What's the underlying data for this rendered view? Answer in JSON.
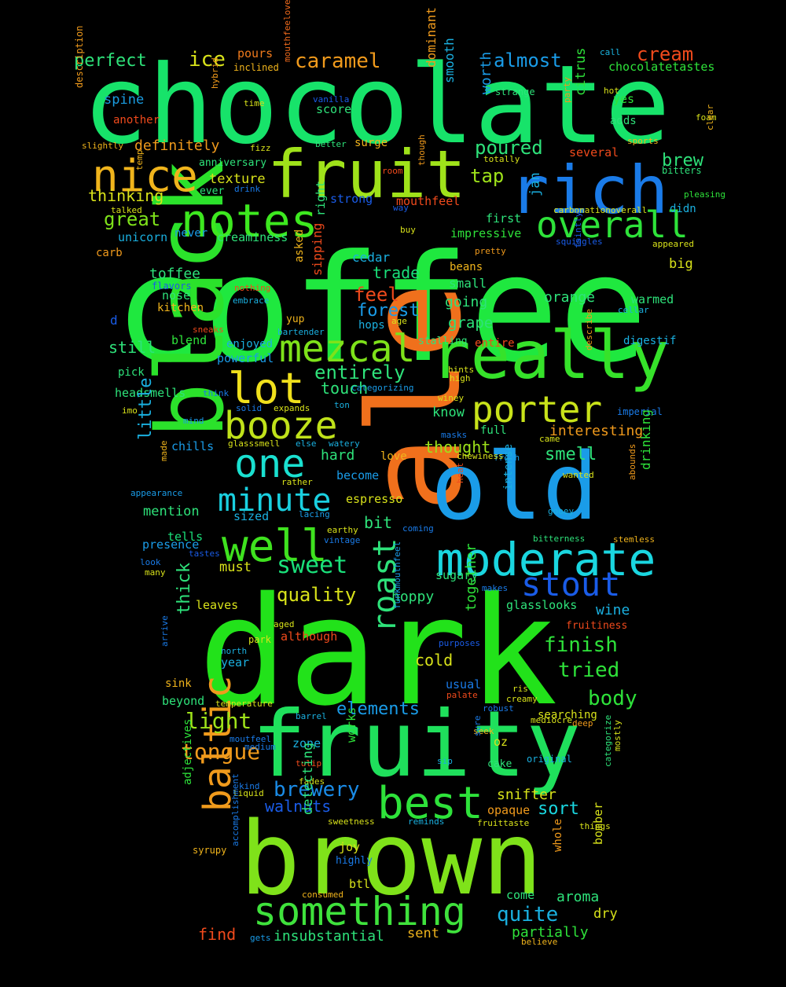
{
  "words": [
    {
      "t": "coffee",
      "c": "#1fe83f"
    },
    {
      "t": "dark",
      "c": "#22e21a"
    },
    {
      "t": "chocolate",
      "c": "#17e36a"
    },
    {
      "t": "ale",
      "c": "#f0701c"
    },
    {
      "t": "brown",
      "c": "#7fe21a"
    },
    {
      "t": "fruity",
      "c": "#1fe05c"
    },
    {
      "t": "black",
      "c": "#2be22b"
    },
    {
      "t": "old",
      "c": "#1a9ce8"
    },
    {
      "t": "fruit",
      "c": "#9fe21a"
    },
    {
      "t": "rich",
      "c": "#1a7be8"
    },
    {
      "t": "really",
      "c": "#36e22a"
    },
    {
      "t": "moderate",
      "c": "#1ad6e0"
    },
    {
      "t": "notes",
      "c": "#3de81f"
    },
    {
      "t": "well",
      "c": "#3fe21f"
    },
    {
      "t": "something",
      "c": "#3fe23c"
    },
    {
      "t": "best",
      "c": "#2ee23a"
    },
    {
      "t": "baltic",
      "c": "#f09a1c"
    },
    {
      "t": "mezcal",
      "c": "#7ee21a"
    },
    {
      "t": "booze",
      "c": "#c0e21a"
    },
    {
      "t": "one",
      "c": "#1ae0d0"
    },
    {
      "t": "lot",
      "c": "#f0e01c"
    },
    {
      "t": "porter",
      "c": "#c8e21a"
    },
    {
      "t": "nice",
      "c": "#f0b41c"
    },
    {
      "t": "overall",
      "c": "#2ee23a"
    },
    {
      "t": "stout",
      "c": "#1a5ce8"
    },
    {
      "t": "minute",
      "c": "#1ad0e0"
    },
    {
      "t": "roast",
      "c": "#2ee27a"
    },
    {
      "t": "sweet",
      "c": "#1ae07a"
    },
    {
      "t": "tongue",
      "c": "#f09a1c"
    },
    {
      "t": "brewery",
      "c": "#1a8ce8"
    },
    {
      "t": "light",
      "c": "#9ee21a"
    },
    {
      "t": "caramel",
      "c": "#f09a1c"
    },
    {
      "t": "cream",
      "c": "#f04a1c"
    },
    {
      "t": "almost",
      "c": "#1a9ce8"
    },
    {
      "t": "ice",
      "c": "#d8e21a"
    },
    {
      "t": "perfect",
      "c": "#2ee27a"
    },
    {
      "t": "pours",
      "c": "#f07a1c"
    },
    {
      "t": "inclined",
      "c": "#f0b41c"
    },
    {
      "t": "chocolatetastes",
      "c": "#2ee23a"
    },
    {
      "t": "call",
      "c": "#1ab4e0"
    },
    {
      "t": "spine",
      "c": "#1a9ce0"
    },
    {
      "t": "another",
      "c": "#f04a1c"
    },
    {
      "t": "description",
      "c": "#f09a1c"
    },
    {
      "t": "hybrid",
      "c": "#f09a1c"
    },
    {
      "t": "time",
      "c": "#d8e21a"
    },
    {
      "t": "mouthfeeloverall",
      "c": "#f06a1c"
    },
    {
      "t": "vanilla",
      "c": "#1a5ce8"
    },
    {
      "t": "score",
      "c": "#2ee27a"
    },
    {
      "t": "dominant",
      "c": "#f09a1c"
    },
    {
      "t": "smooth",
      "c": "#1ab0e0"
    },
    {
      "t": "worth",
      "c": "#1a9ce8"
    },
    {
      "t": "strange",
      "c": "#2ee27a"
    },
    {
      "t": "party",
      "c": "#f09a1c"
    },
    {
      "t": "hot",
      "c": "#d8e21a"
    },
    {
      "t": "yes",
      "c": "#2ee23a"
    },
    {
      "t": "foam",
      "c": "#d8e21a"
    },
    {
      "t": "clear",
      "c": "#f0b41c"
    },
    {
      "t": "slightly",
      "c": "#f0b41c"
    },
    {
      "t": "definitely",
      "c": "#f09a1c"
    },
    {
      "t": "fizz",
      "c": "#d8e21a"
    },
    {
      "t": "better",
      "c": "#2ee27a"
    },
    {
      "t": "surge",
      "c": "#f0b41c"
    },
    {
      "t": "citrus",
      "c": "#2ee23a"
    },
    {
      "t": "adds",
      "c": "#2ee27a"
    },
    {
      "t": "several",
      "c": "#f04a1c"
    },
    {
      "t": "sports",
      "c": "#f0b41c"
    },
    {
      "t": "anniversary",
      "c": "#2ee27a"
    },
    {
      "t": "temp",
      "c": "#f0b41c"
    },
    {
      "t": "poured",
      "c": "#2ee27a"
    },
    {
      "t": "totally",
      "c": "#d8e21a"
    },
    {
      "t": "texture",
      "c": "#d8e21a"
    },
    {
      "t": "room",
      "c": "#f04a1c"
    },
    {
      "t": "though",
      "c": "#f09a1c"
    },
    {
      "t": "tap",
      "c": "#9ee21a"
    },
    {
      "t": "brew",
      "c": "#2ee27a"
    },
    {
      "t": "bitters",
      "c": "#2ee27a"
    },
    {
      "t": "thinking",
      "c": "#d8e21a"
    },
    {
      "t": "ever",
      "c": "#2ee27a"
    },
    {
      "t": "drink",
      "c": "#1a7be8"
    },
    {
      "t": "didn",
      "c": "#1ab0e0"
    },
    {
      "t": "pleasing",
      "c": "#2ee23a"
    },
    {
      "t": "jan",
      "c": "#1ab0e0"
    },
    {
      "t": "strong",
      "c": "#1a5ce8"
    },
    {
      "t": "way",
      "c": "#1a5ce8"
    },
    {
      "t": "great",
      "c": "#7ee21a"
    },
    {
      "t": "talked",
      "c": "#d8e21a"
    },
    {
      "t": "mouthfeel",
      "c": "#f04a1c"
    },
    {
      "t": "first",
      "c": "#2ee27a"
    },
    {
      "t": "carbonationoverall",
      "c": "#d8e21a"
    },
    {
      "t": "unicorn",
      "c": "#1ab0e0"
    },
    {
      "t": "never",
      "c": "#1a9ce8"
    },
    {
      "t": "creaminess",
      "c": "#2ee27a"
    },
    {
      "t": "buy",
      "c": "#d8e21a"
    },
    {
      "t": "impressive",
      "c": "#2ee23a"
    },
    {
      "t": "squiggles",
      "c": "#1a5ce8"
    },
    {
      "t": "appeared",
      "c": "#d8e21a"
    },
    {
      "t": "carb",
      "c": "#f09a1c"
    },
    {
      "t": "cedar",
      "c": "#1ab0e0"
    },
    {
      "t": "right",
      "c": "#2ee27a"
    },
    {
      "t": "pretty",
      "c": "#f09a1c"
    },
    {
      "t": "toffee",
      "c": "#2ee27a"
    },
    {
      "t": "asked",
      "c": "#f0b41c"
    },
    {
      "t": "beans",
      "c": "#f0b41c"
    },
    {
      "t": "faintly",
      "c": "#1a5ce8"
    },
    {
      "t": "big",
      "c": "#d8e21a"
    },
    {
      "t": "flavors",
      "c": "#1a5ce8"
    },
    {
      "t": "nothing",
      "c": "#f04a1c"
    },
    {
      "t": "trade",
      "c": "#1ae07a"
    },
    {
      "t": "small",
      "c": "#2ee27a"
    },
    {
      "t": "nose",
      "c": "#2ee27a"
    },
    {
      "t": "embrace",
      "c": "#1ab0e0"
    },
    {
      "t": "sipping",
      "c": "#f04a1c"
    },
    {
      "t": "feel",
      "c": "#f04a1c"
    },
    {
      "t": "orange",
      "c": "#2ee27a"
    },
    {
      "t": "warmed",
      "c": "#2ee27a"
    },
    {
      "t": "kitchen",
      "c": "#f0b41c"
    },
    {
      "t": "forest",
      "c": "#1a9ce8"
    },
    {
      "t": "going",
      "c": "#2ee27a"
    },
    {
      "t": "cellar",
      "c": "#1ab0e0"
    },
    {
      "t": "d",
      "c": "#1a5ce8"
    },
    {
      "t": "yup",
      "c": "#f0b41c"
    },
    {
      "t": "age",
      "c": "#d8e21a"
    },
    {
      "t": "hops",
      "c": "#1ab0e0"
    },
    {
      "t": "sneaks",
      "c": "#f04a1c"
    },
    {
      "t": "bartender",
      "c": "#1ab0e0"
    },
    {
      "t": "grape",
      "c": "#2ee27a"
    },
    {
      "t": "blend",
      "c": "#2ee23a"
    },
    {
      "t": "still",
      "c": "#2ee27a"
    },
    {
      "t": "enjoyed",
      "c": "#1ab0e0"
    },
    {
      "t": "stalling",
      "c": "#2ee27a"
    },
    {
      "t": "entire",
      "c": "#f04a1c"
    },
    {
      "t": "describe",
      "c": "#f09a1c"
    },
    {
      "t": "digestif",
      "c": "#1ab0e0"
    },
    {
      "t": "powerful",
      "c": "#1a9ce8"
    },
    {
      "t": "hints",
      "c": "#d8e21a"
    },
    {
      "t": "pick",
      "c": "#2ee27a"
    },
    {
      "t": "entirely",
      "c": "#2ee27a"
    },
    {
      "t": "high",
      "c": "#d8e21a"
    },
    {
      "t": "headsmells",
      "c": "#2ee27a"
    },
    {
      "t": "think",
      "c": "#1a7be8"
    },
    {
      "t": "touch",
      "c": "#2ee27a"
    },
    {
      "t": "categorizing",
      "c": "#1a9ce8"
    },
    {
      "t": "winey",
      "c": "#d8e21a"
    },
    {
      "t": "imo",
      "c": "#d8e21a"
    },
    {
      "t": "solid",
      "c": "#1a7be8"
    },
    {
      "t": "expands",
      "c": "#d8e21a"
    },
    {
      "t": "ton",
      "c": "#1ab0e0"
    },
    {
      "t": "know",
      "c": "#2ee27a"
    },
    {
      "t": "imperial",
      "c": "#1a7be8"
    },
    {
      "t": "mind",
      "c": "#1a9ce8"
    },
    {
      "t": "little",
      "c": "#1ab0e0"
    },
    {
      "t": "chills",
      "c": "#1a9ce8"
    },
    {
      "t": "glasssmell",
      "c": "#d8e21a"
    },
    {
      "t": "else",
      "c": "#1ab0e0"
    },
    {
      "t": "watery",
      "c": "#1ab0e0"
    },
    {
      "t": "masks",
      "c": "#1a7be8"
    },
    {
      "t": "came",
      "c": "#d8e21a"
    },
    {
      "t": "full",
      "c": "#2ee27a"
    },
    {
      "t": "interesting",
      "c": "#f09a1c"
    },
    {
      "t": "hard",
      "c": "#2ee27a"
    },
    {
      "t": "thought",
      "c": "#9ee21a"
    },
    {
      "t": "love",
      "c": "#f0b41c"
    },
    {
      "t": "fresh",
      "c": "#1a9ce8"
    },
    {
      "t": "chewiness",
      "c": "#d8e21a"
    },
    {
      "t": "made",
      "c": "#f0b41c"
    },
    {
      "t": "rather",
      "c": "#d8e21a"
    },
    {
      "t": "smell",
      "c": "#2ee27a"
    },
    {
      "t": "wanted",
      "c": "#d8e21a"
    },
    {
      "t": "drinking",
      "c": "#2ee23a"
    },
    {
      "t": "become",
      "c": "#1a9ce8"
    },
    {
      "t": "appearance",
      "c": "#1a9ce8"
    },
    {
      "t": "espresso",
      "c": "#d8e21a"
    },
    {
      "t": "lacing",
      "c": "#1a9ce8"
    },
    {
      "t": "heat",
      "c": "#f04a1c"
    },
    {
      "t": "intense",
      "c": "#1ab0e0"
    },
    {
      "t": "abounds",
      "c": "#f09a1c"
    },
    {
      "t": "mention",
      "c": "#2ee27a"
    },
    {
      "t": "sized",
      "c": "#1ab0e0"
    },
    {
      "t": "gooey",
      "c": "#1ab0e0"
    },
    {
      "t": "bit",
      "c": "#2ee27a"
    },
    {
      "t": "coming",
      "c": "#1a7be8"
    },
    {
      "t": "tells",
      "c": "#1ae07a"
    },
    {
      "t": "earthy",
      "c": "#d8e21a"
    },
    {
      "t": "presence",
      "c": "#1a9ce8"
    },
    {
      "t": "vintage",
      "c": "#1a7be8"
    },
    {
      "t": "bitterness",
      "c": "#2ee27a"
    },
    {
      "t": "stemless",
      "c": "#f0b41c"
    },
    {
      "t": "tastes",
      "c": "#1a5ce8"
    },
    {
      "t": "look",
      "c": "#1a7be8"
    },
    {
      "t": "must",
      "c": "#d8e21a"
    },
    {
      "t": "many",
      "c": "#d8e21a"
    },
    {
      "t": "sugary",
      "c": "#2ee27a"
    },
    {
      "t": "makes",
      "c": "#1a7be8"
    },
    {
      "t": "quality",
      "c": "#d8e21a"
    },
    {
      "t": "hoppy",
      "c": "#2ee27a"
    },
    {
      "t": "leaves",
      "c": "#d8e21a"
    },
    {
      "t": "glasslooks",
      "c": "#2ee27a"
    },
    {
      "t": "thick",
      "c": "#2ee27a"
    },
    {
      "t": "wine",
      "c": "#1ab0e0"
    },
    {
      "t": "aged",
      "c": "#d8e21a"
    },
    {
      "t": "although",
      "c": "#f04a1c"
    },
    {
      "t": "fruitiness",
      "c": "#f04a1c"
    },
    {
      "t": "park",
      "c": "#d8e21a"
    },
    {
      "t": "purposes",
      "c": "#1a5ce8"
    },
    {
      "t": "funkmouthfeel",
      "c": "#1a9ce8"
    },
    {
      "t": "together",
      "c": "#2ee23a"
    },
    {
      "t": "finish",
      "c": "#2ee23a"
    },
    {
      "t": "arrive",
      "c": "#1a7be8"
    },
    {
      "t": "north",
      "c": "#1ab0e0"
    },
    {
      "t": "year",
      "c": "#1ab0e0"
    },
    {
      "t": "cold",
      "c": "#d8e21a"
    },
    {
      "t": "tried",
      "c": "#2ee23a"
    },
    {
      "t": "usual",
      "c": "#1a7be8"
    },
    {
      "t": "ris",
      "c": "#d8e21a"
    },
    {
      "t": "sink",
      "c": "#f0b41c"
    },
    {
      "t": "palate",
      "c": "#f04a1c"
    },
    {
      "t": "creamy",
      "c": "#d8e21a"
    },
    {
      "t": "body",
      "c": "#2ee23a"
    },
    {
      "t": "beyond",
      "c": "#2ee27a"
    },
    {
      "t": "temperature",
      "c": "#d8e21a"
    },
    {
      "t": "elements",
      "c": "#1a9ce8"
    },
    {
      "t": "robust",
      "c": "#1a7be8"
    },
    {
      "t": "searching",
      "c": "#d8e21a"
    },
    {
      "t": "barrel",
      "c": "#1ab0e0"
    },
    {
      "t": "mediocre",
      "c": "#d8e21a"
    },
    {
      "t": "deep",
      "c": "#f09a1c"
    },
    {
      "t": "seek",
      "c": "#f0b41c"
    },
    {
      "t": "moutfeel",
      "c": "#1a7be8"
    },
    {
      "t": "zone",
      "c": "#1ab0e0"
    },
    {
      "t": "works",
      "c": "#2ee23a"
    },
    {
      "t": "oz",
      "c": "#d8e21a"
    },
    {
      "t": "sure",
      "c": "#1a7be8"
    },
    {
      "t": "mostly",
      "c": "#d8e21a"
    },
    {
      "t": "medium",
      "c": "#1a7be8"
    },
    {
      "t": "tulip",
      "c": "#f04a1c"
    },
    {
      "t": "sip",
      "c": "#1ab0e0"
    },
    {
      "t": "cake",
      "c": "#2ee27a"
    },
    {
      "t": "original",
      "c": "#1ab0e0"
    },
    {
      "t": "categorize",
      "c": "#2ee27a"
    },
    {
      "t": "kind",
      "c": "#1a7be8"
    },
    {
      "t": "fades",
      "c": "#d8e21a"
    },
    {
      "t": "adjectives",
      "c": "#2ee23a"
    },
    {
      "t": "liquid",
      "c": "#d8e21a"
    },
    {
      "t": "walnuts",
      "c": "#1a5ce8"
    },
    {
      "t": "snifter",
      "c": "#d8e21a"
    },
    {
      "t": "sort",
      "c": "#1ad6e0"
    },
    {
      "t": "opaque",
      "c": "#f09a1c"
    },
    {
      "t": "detecting",
      "c": "#2ee27a"
    },
    {
      "t": "sweetness",
      "c": "#d8e21a"
    },
    {
      "t": "reminds",
      "c": "#1ab0e0"
    },
    {
      "t": "fruittaste",
      "c": "#d8e21a"
    },
    {
      "t": "things",
      "c": "#d8e21a"
    },
    {
      "t": "syrupy",
      "c": "#f0b41c"
    },
    {
      "t": "accomplishment",
      "c": "#1a7be8"
    },
    {
      "t": "joy",
      "c": "#d8e21a"
    },
    {
      "t": "highly",
      "c": "#1a7be8"
    },
    {
      "t": "whole",
      "c": "#f09a1c"
    },
    {
      "t": "bomber",
      "c": "#d8e21a"
    },
    {
      "t": "btl",
      "c": "#d8e21a"
    },
    {
      "t": "come",
      "c": "#2ee27a"
    },
    {
      "t": "consumed",
      "c": "#f0b41c"
    },
    {
      "t": "aroma",
      "c": "#2ee27a"
    },
    {
      "t": "quite",
      "c": "#1ab0e0"
    },
    {
      "t": "dry",
      "c": "#d8e21a"
    },
    {
      "t": "partially",
      "c": "#2ee23a"
    },
    {
      "t": "find",
      "c": "#f04a1c"
    },
    {
      "t": "gets",
      "c": "#1a9ce8"
    },
    {
      "t": "insubstantial",
      "c": "#2ee27a"
    },
    {
      "t": "sent",
      "c": "#f0b41c"
    },
    {
      "t": "believe",
      "c": "#f0b41c"
    }
  ]
}
